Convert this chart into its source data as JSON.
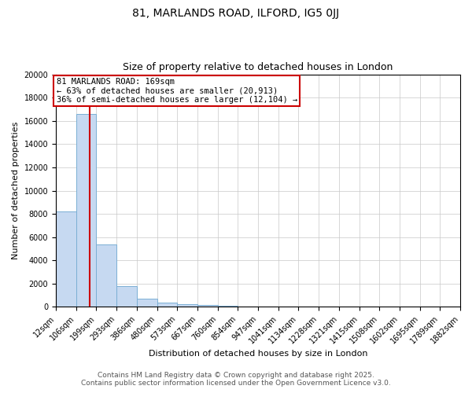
{
  "title1": "81, MARLANDS ROAD, ILFORD, IG5 0JJ",
  "title2": "Size of property relative to detached houses in London",
  "xlabel": "Distribution of detached houses by size in London",
  "ylabel": "Number of detached properties",
  "bin_edges": [
    12,
    106,
    199,
    293,
    386,
    480,
    573,
    667,
    760,
    854,
    947,
    1041,
    1134,
    1228,
    1321,
    1415,
    1508,
    1602,
    1695,
    1789,
    1882
  ],
  "bin_heights": [
    8200,
    16600,
    5400,
    1800,
    700,
    350,
    250,
    150,
    100,
    50,
    20,
    10,
    5,
    3,
    2,
    1,
    1,
    0,
    0,
    0
  ],
  "bar_color": "#c6d9f1",
  "bar_edgecolor": "#7bafd4",
  "property_size": 169,
  "red_line_color": "#cc0000",
  "annotation_line1": "81 MARLANDS ROAD: 169sqm",
  "annotation_line2": "← 63% of detached houses are smaller (20,913)",
  "annotation_line3": "36% of semi-detached houses are larger (12,104) →",
  "annotation_box_color": "#cc0000",
  "ylim": [
    0,
    20000
  ],
  "yticks": [
    0,
    2000,
    4000,
    6000,
    8000,
    10000,
    12000,
    14000,
    16000,
    18000,
    20000
  ],
  "background_color": "#ffffff",
  "grid_color": "#c8c8c8",
  "footer1": "Contains HM Land Registry data © Crown copyright and database right 2025.",
  "footer2": "Contains public sector information licensed under the Open Government Licence v3.0.",
  "title1_fontsize": 10,
  "title2_fontsize": 9,
  "axis_fontsize": 8,
  "tick_fontsize": 7,
  "annotation_fontsize": 7.5,
  "footer_fontsize": 6.5
}
